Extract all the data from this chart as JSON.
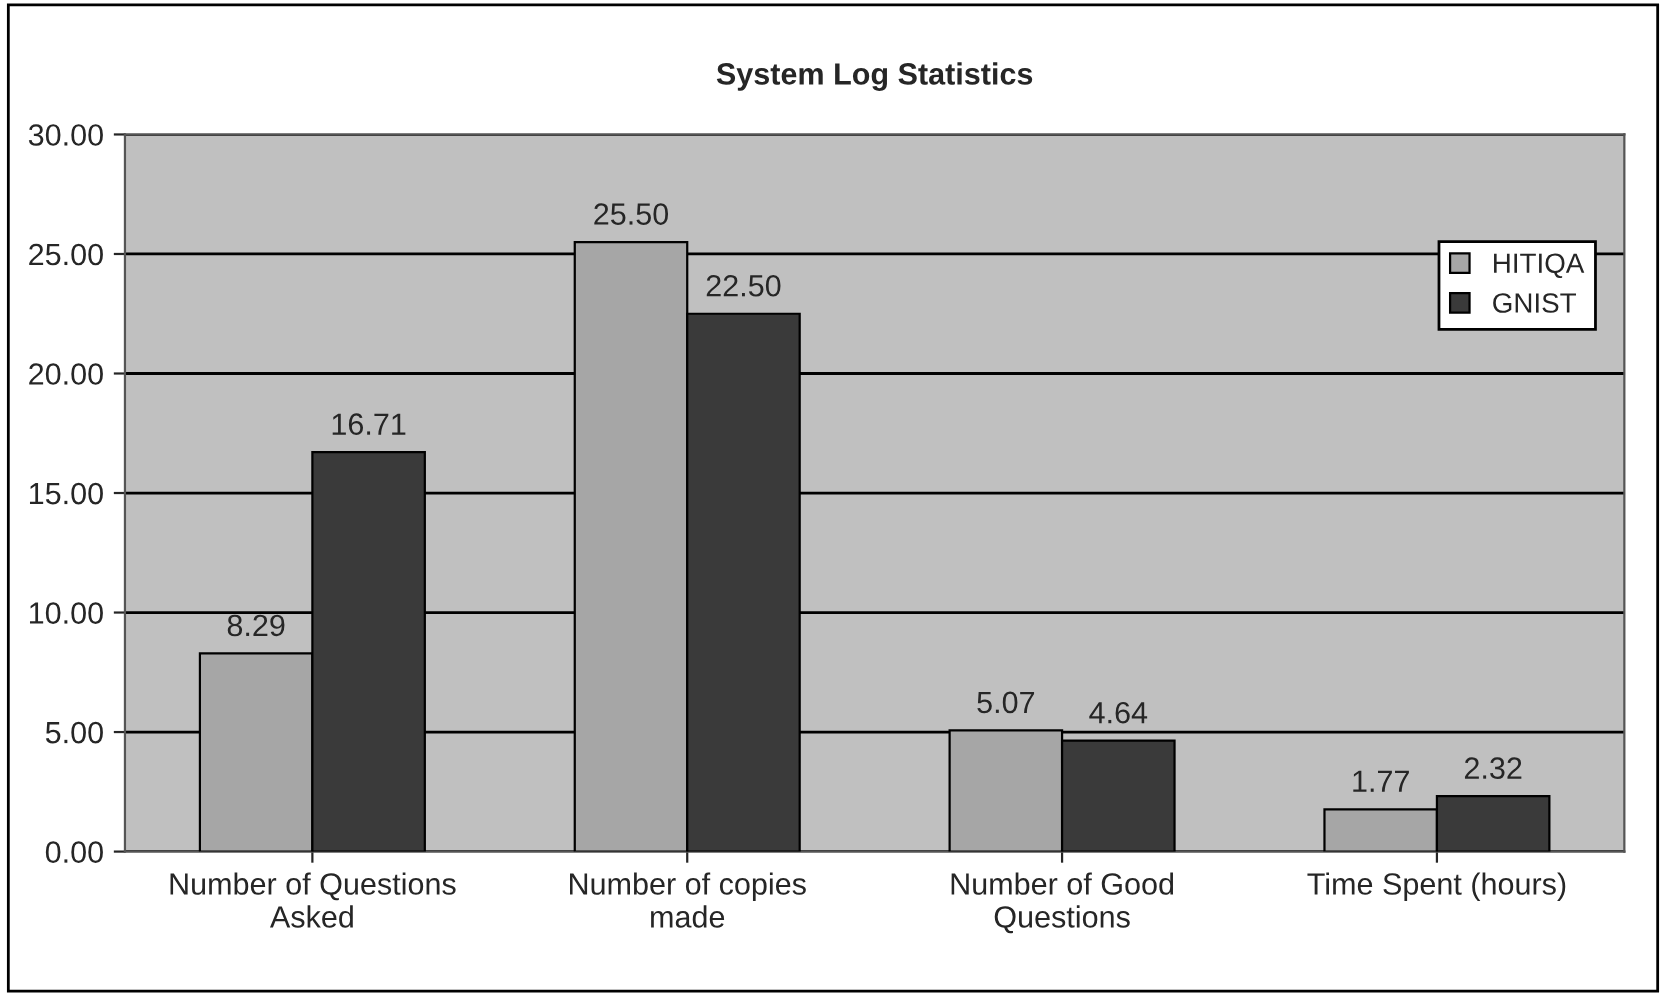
{
  "chart_data": {
    "type": "bar",
    "title": "System Log Statistics",
    "categories": [
      "Number of Questions\nAsked",
      "Number of copies\nmade",
      "Number of Good\nQuestions",
      "Time Spent (hours)"
    ],
    "series": [
      {
        "name": "HITIQA",
        "color": "#a6a6a6",
        "values": [
          8.29,
          25.5,
          5.07,
          1.77
        ],
        "value_labels": [
          "8.29",
          "25.50",
          "5.07",
          "1.77"
        ]
      },
      {
        "name": "GNIST",
        "color": "#3a3a3a",
        "values": [
          16.71,
          22.5,
          4.64,
          2.32
        ],
        "value_labels": [
          "16.71",
          "22.50",
          "4.64",
          "2.32"
        ]
      }
    ],
    "ylim": [
      0,
      30
    ],
    "yticks": [
      {
        "value": 0,
        "label": "0.00"
      },
      {
        "value": 5,
        "label": "5.00"
      },
      {
        "value": 10,
        "label": "10.00"
      },
      {
        "value": 15,
        "label": "15.00"
      },
      {
        "value": 20,
        "label": "20.00"
      },
      {
        "value": 25,
        "label": "25.00"
      },
      {
        "value": 30,
        "label": "30.00"
      }
    ],
    "grid": "y",
    "legend": "top right"
  }
}
